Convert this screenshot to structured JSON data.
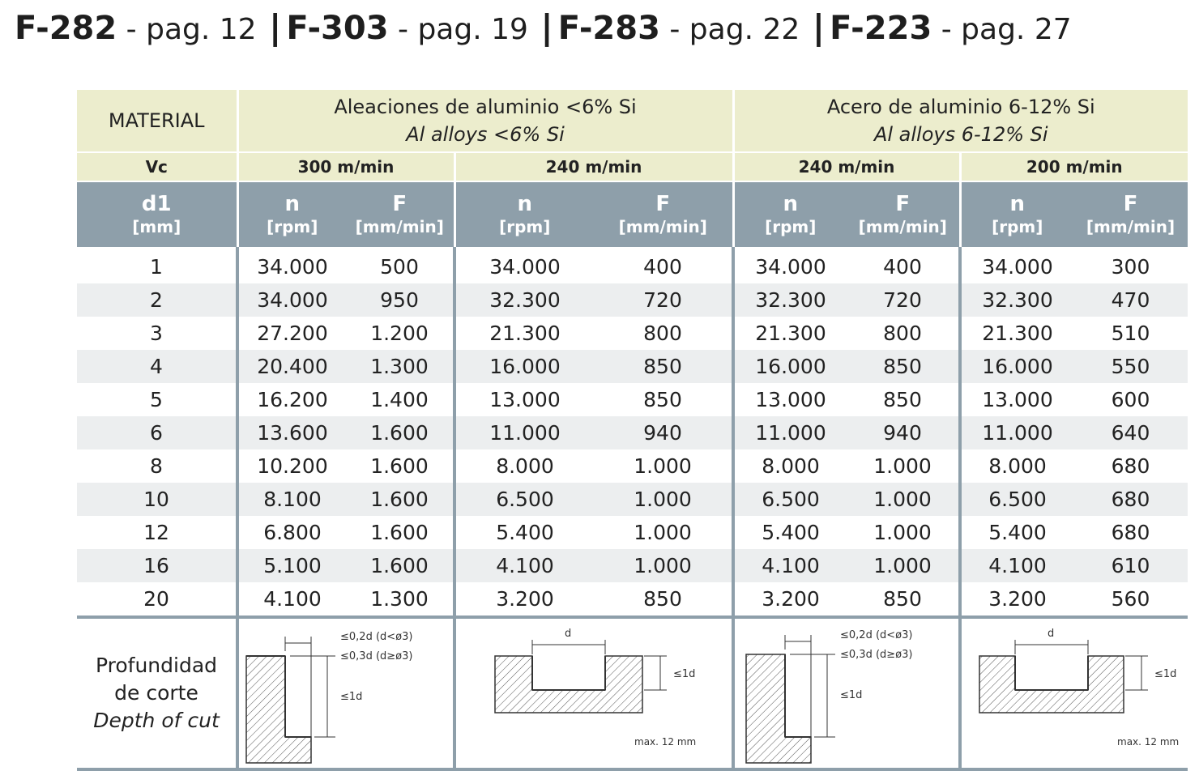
{
  "header": {
    "items": [
      {
        "code": "F-282",
        "page": "- pag. 12"
      },
      {
        "code": "F-303",
        "page": "- pag. 19"
      },
      {
        "code": "F-283",
        "page": "- pag. 22"
      },
      {
        "code": "F-223",
        "page": "- pag. 27"
      }
    ],
    "separator": "|"
  },
  "table": {
    "material_label": "MATERIAL",
    "groups": [
      {
        "es": "Aleaciones de aluminio <6% Si",
        "en": "Al alloys <6% Si"
      },
      {
        "es": "Acero de aluminio 6-12% Si",
        "en": "Al alloys 6-12% Si"
      }
    ],
    "vc_label": "Vc",
    "vc_values": [
      "300 m/min",
      "240 m/min",
      "240 m/min",
      "200 m/min"
    ],
    "d1_label": "d1",
    "d1_unit": "[mm]",
    "n_label": "n",
    "n_unit": "[rpm]",
    "f_label": "F",
    "f_unit": "[mm/min]",
    "rows": [
      [
        "1",
        "34.000",
        "500",
        "34.000",
        "400",
        "34.000",
        "400",
        "34.000",
        "300"
      ],
      [
        "2",
        "34.000",
        "950",
        "32.300",
        "720",
        "32.300",
        "720",
        "32.300",
        "470"
      ],
      [
        "3",
        "27.200",
        "1.200",
        "21.300",
        "800",
        "21.300",
        "800",
        "21.300",
        "510"
      ],
      [
        "4",
        "20.400",
        "1.300",
        "16.000",
        "850",
        "16.000",
        "850",
        "16.000",
        "550"
      ],
      [
        "5",
        "16.200",
        "1.400",
        "13.000",
        "850",
        "13.000",
        "850",
        "13.000",
        "600"
      ],
      [
        "6",
        "13.600",
        "1.600",
        "11.000",
        "940",
        "11.000",
        "940",
        "11.000",
        "640"
      ],
      [
        "8",
        "10.200",
        "1.600",
        "8.000",
        "1.000",
        "8.000",
        "1.000",
        "8.000",
        "680"
      ],
      [
        "10",
        "8.100",
        "1.600",
        "6.500",
        "1.000",
        "6.500",
        "1.000",
        "6.500",
        "680"
      ],
      [
        "12",
        "6.800",
        "1.600",
        "5.400",
        "1.000",
        "5.400",
        "1.000",
        "5.400",
        "680"
      ],
      [
        "16",
        "5.100",
        "1.600",
        "4.100",
        "1.000",
        "4.100",
        "1.000",
        "4.100",
        "610"
      ],
      [
        "20",
        "4.100",
        "1.300",
        "3.200",
        "850",
        "3.200",
        "850",
        "3.200",
        "560"
      ]
    ],
    "depth": {
      "label_es_1": "Profundidad",
      "label_es_2": "de corte",
      "label_en": "Depth of cut",
      "side_top1": "≤0,2d (d<ø3)",
      "side_top2": "≤0,3d (d≥ø3)",
      "side_depth": "≤1d",
      "slot_width": "d",
      "slot_depth": "≤1d",
      "slot_max": "max. 12 mm"
    }
  },
  "colors": {
    "header_bg": "#ecedcd",
    "units_bg": "#8e9faa",
    "row_shade": "#eceeef"
  }
}
